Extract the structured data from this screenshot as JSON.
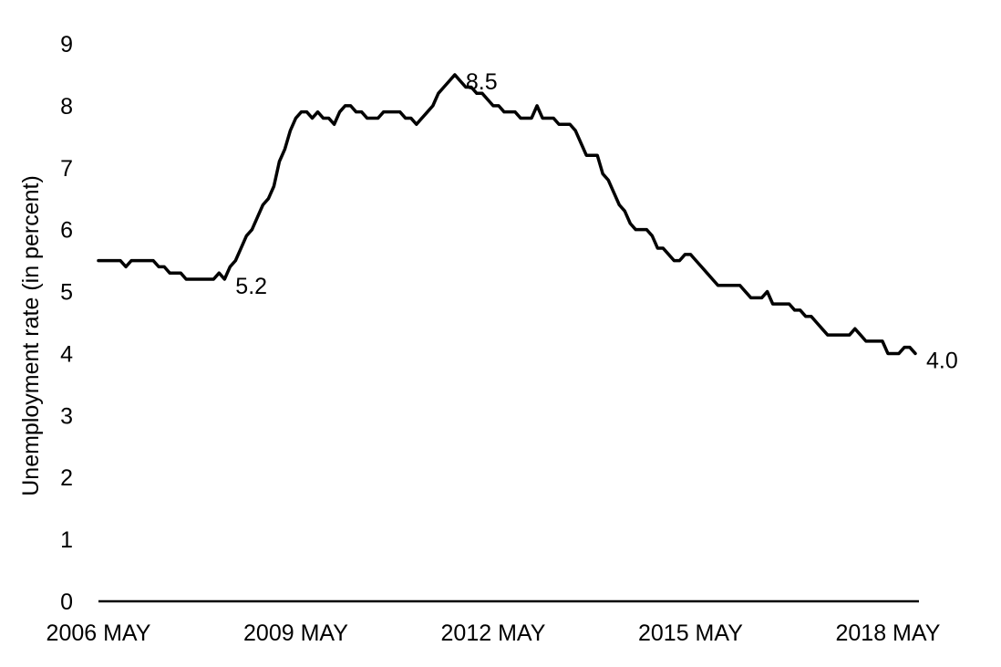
{
  "chart_data": {
    "type": "line",
    "title": "",
    "xlabel": "",
    "ylabel": "Unemployment rate (in percent)",
    "ylim": [
      0,
      9
    ],
    "yticks": [
      "0",
      "1",
      "2",
      "3",
      "4",
      "5",
      "6",
      "7",
      "8",
      "9"
    ],
    "xticks": [
      {
        "label": "2006 MAY",
        "index": 0
      },
      {
        "label": "2009 MAY",
        "index": 36
      },
      {
        "label": "2012 MAY",
        "index": 72
      },
      {
        "label": "2015 MAY",
        "index": 108
      },
      {
        "label": "2018 MAY",
        "index": 144
      }
    ],
    "grid": false,
    "legend": "none",
    "line_color": "#000000",
    "series": [
      {
        "name": "",
        "start": "2006 MAY",
        "frequency": "monthly",
        "values": [
          5.5,
          5.5,
          5.5,
          5.5,
          5.5,
          5.4,
          5.5,
          5.5,
          5.5,
          5.5,
          5.5,
          5.4,
          5.4,
          5.3,
          5.3,
          5.3,
          5.2,
          5.2,
          5.2,
          5.2,
          5.2,
          5.2,
          5.3,
          5.2,
          5.4,
          5.5,
          5.7,
          5.9,
          6.0,
          6.2,
          6.4,
          6.5,
          6.7,
          7.1,
          7.3,
          7.6,
          7.8,
          7.9,
          7.9,
          7.8,
          7.9,
          7.8,
          7.8,
          7.7,
          7.9,
          8.0,
          8.0,
          7.9,
          7.9,
          7.8,
          7.8,
          7.8,
          7.9,
          7.9,
          7.9,
          7.9,
          7.8,
          7.8,
          7.7,
          7.8,
          7.9,
          8.0,
          8.2,
          8.3,
          8.4,
          8.5,
          8.4,
          8.3,
          8.3,
          8.2,
          8.2,
          8.1,
          8.0,
          8.0,
          7.9,
          7.9,
          7.9,
          7.8,
          7.8,
          7.8,
          8.0,
          7.8,
          7.8,
          7.8,
          7.7,
          7.7,
          7.7,
          7.6,
          7.4,
          7.2,
          7.2,
          7.2,
          6.9,
          6.8,
          6.6,
          6.4,
          6.3,
          6.1,
          6.0,
          6.0,
          6.0,
          5.9,
          5.7,
          5.7,
          5.6,
          5.5,
          5.5,
          5.6,
          5.6,
          5.5,
          5.4,
          5.3,
          5.2,
          5.1,
          5.1,
          5.1,
          5.1,
          5.1,
          5.0,
          4.9,
          4.9,
          4.9,
          5.0,
          4.8,
          4.8,
          4.8,
          4.8,
          4.7,
          4.7,
          4.6,
          4.6,
          4.5,
          4.4,
          4.3,
          4.3,
          4.3,
          4.3,
          4.3,
          4.4,
          4.3,
          4.2,
          4.2,
          4.2,
          4.2,
          4.0,
          4.0,
          4.0,
          4.1,
          4.1,
          4.0
        ]
      }
    ],
    "annotations": [
      {
        "text": "5.2",
        "index": 23,
        "value": 5.2
      },
      {
        "text": "8.5",
        "index": 65,
        "value": 8.5
      },
      {
        "text": "4.0",
        "index": 149,
        "value": 4.0
      }
    ]
  }
}
